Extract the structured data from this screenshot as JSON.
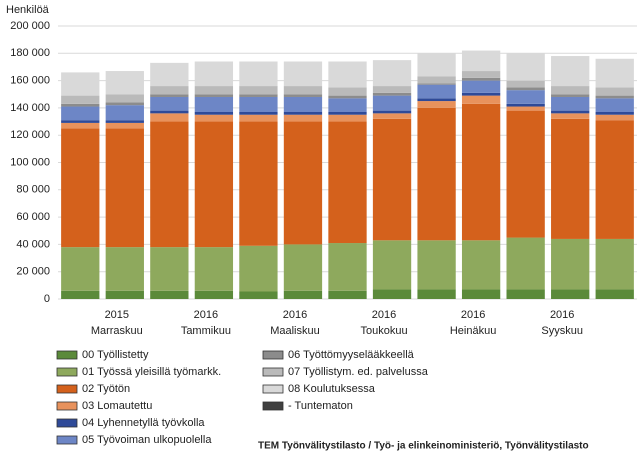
{
  "chart_data": {
    "type": "stacked_bar",
    "y_axis_label": "Henkilöä",
    "source": "TEM Työnvälitystilasto / Työ- ja elinkeinoministeriö, Työnvälitystilasto",
    "categories": [
      null,
      {
        "year": "2015",
        "month": "Marraskuu"
      },
      null,
      {
        "year": "2016",
        "month": "Tammikuu"
      },
      null,
      {
        "year": "2016",
        "month": "Maaliskuu"
      },
      null,
      {
        "year": "2016",
        "month": "Toukokuu"
      },
      null,
      {
        "year": "2016",
        "month": "Heinäkuu"
      },
      null,
      {
        "year": "2016",
        "month": "Syyskuu"
      },
      null
    ],
    "ylim": [
      0,
      200000
    ],
    "yticks": [
      {
        "value": 0,
        "label": "0"
      },
      {
        "value": 20000,
        "label": "20 000"
      },
      {
        "value": 40000,
        "label": "40 000"
      },
      {
        "value": 60000,
        "label": "60 000"
      },
      {
        "value": 80000,
        "label": "80 000"
      },
      {
        "value": 100000,
        "label": "100 000"
      },
      {
        "value": 120000,
        "label": "120 000"
      },
      {
        "value": 140000,
        "label": "140 000"
      },
      {
        "value": 160000,
        "label": "160 000"
      },
      {
        "value": 180000,
        "label": "180 000"
      },
      {
        "value": 200000,
        "label": "200 000"
      }
    ],
    "grid": true,
    "series": [
      {
        "name": "00 Työllistetty",
        "color": "#5b8a3a",
        "values": [
          6000,
          6000,
          6000,
          6000,
          5500,
          6000,
          6000,
          7000,
          7000,
          7000,
          7000,
          7000,
          7000
        ]
      },
      {
        "name": "01 Työssä yleisillä työmarkk.",
        "color": "#8ea95d",
        "values": [
          32000,
          32000,
          32000,
          32000,
          33500,
          34000,
          35000,
          36000,
          36000,
          36000,
          38000,
          37000,
          37000
        ]
      },
      {
        "name": "02 Työtön",
        "color": "#d4611c",
        "values": [
          87000,
          87000,
          92000,
          92000,
          91000,
          90000,
          89000,
          89000,
          97000,
          100000,
          93000,
          88000,
          87000
        ]
      },
      {
        "name": "03 Lomautettu",
        "color": "#e8925c",
        "values": [
          4000,
          4000,
          6000,
          5000,
          5000,
          5000,
          5000,
          4000,
          5000,
          6000,
          3000,
          4000,
          4000
        ]
      },
      {
        "name": "04 Lyhennetyllä työvkolla",
        "color": "#2f4a98",
        "values": [
          2000,
          2000,
          2000,
          2000,
          2000,
          2000,
          2000,
          2000,
          2000,
          2000,
          2000,
          2000,
          2000
        ]
      },
      {
        "name": "05 Työvoiman ulkopuolella",
        "color": "#6d86c6",
        "values": [
          10000,
          11000,
          10000,
          11000,
          11000,
          11000,
          10000,
          11000,
          10000,
          9000,
          10000,
          10000,
          10000
        ]
      },
      {
        "name": "06 Työttömyyselääkkeellä",
        "color": "#8c8c8c",
        "values": [
          2000,
          2000,
          2000,
          2000,
          2000,
          2000,
          2000,
          2000,
          1000,
          2000,
          2000,
          2000,
          2000
        ]
      },
      {
        "name": "07 Työllistym. ed. palvelussa",
        "color": "#bababa",
        "values": [
          6000,
          6000,
          6000,
          6000,
          6000,
          6000,
          6000,
          5000,
          5000,
          5000,
          5000,
          6000,
          6000
        ]
      },
      {
        "name": "08 Koulutuksessa",
        "color": "#d9d9d9",
        "values": [
          17000,
          17000,
          17000,
          18000,
          18000,
          18000,
          19000,
          19000,
          17000,
          15000,
          20000,
          22000,
          21000
        ]
      },
      {
        "name": "- Tuntematon",
        "color": "#404040",
        "values": [
          0,
          0,
          0,
          0,
          0,
          0,
          0,
          0,
          0,
          0,
          0,
          0,
          0
        ]
      }
    ]
  }
}
